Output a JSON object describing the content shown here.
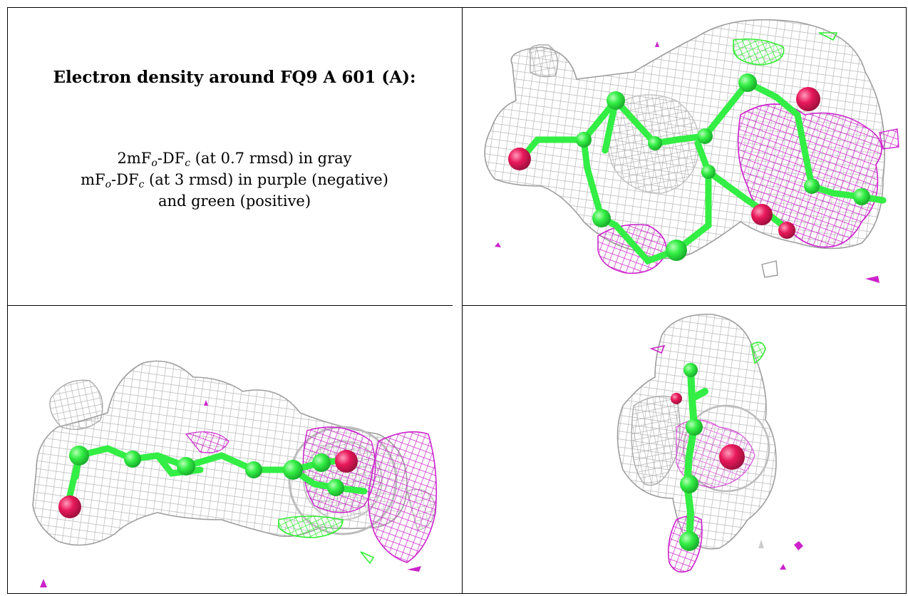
{
  "title": "Electron density around FQ9 A 601 (A):",
  "legend": {
    "line1": {
      "pre": "2mF",
      "sub1": "o",
      "mid": "-DF",
      "sub2": "c",
      "post": " (at 0.7 rmsd) in gray"
    },
    "line2": {
      "pre": "mF",
      "sub1": "o",
      "mid": "-DF",
      "sub2": "c",
      "post": " (at 3 rmsd) in purple (negative)"
    },
    "line3": "and green (positive)"
  },
  "colors": {
    "mesh_2fofc": "#b8b8b8",
    "mesh_negative": "#cc22cc",
    "mesh_positive": "#33ee33",
    "atom_carbon": "#33ee44",
    "atom_oxygen": "#e8185a"
  },
  "panels": [
    {
      "view": "top-right"
    },
    {
      "view": "bottom-left"
    },
    {
      "view": "bottom-right"
    }
  ]
}
